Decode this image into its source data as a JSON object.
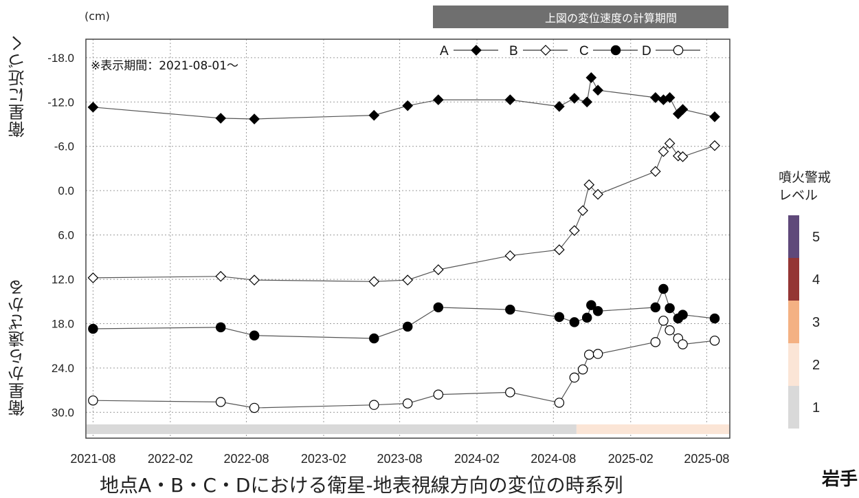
{
  "unit_label": "(cm)",
  "period_banner": "上図の変位速度の計算期間",
  "display_note": "※表示期間：2021-08-01～",
  "y_label_top": "衛星に近づく",
  "y_label_bottom": "衛星から遠ざかる",
  "x_title": "地点A・B・C・Dにおける衛星-地表視線方向の変位の時系列",
  "alert_title_line1": "噴火警戒",
  "alert_title_line2": "レベル",
  "corner_text": "岩手",
  "alert_levels": [
    {
      "level": "1",
      "color": "#d9d9d9"
    },
    {
      "level": "2",
      "color": "#fbe5d6"
    },
    {
      "level": "3",
      "color": "#f4b183"
    },
    {
      "level": "4",
      "color": "#943634"
    },
    {
      "level": "5",
      "color": "#5f497a"
    }
  ],
  "chart_data": {
    "type": "line",
    "x_type": "date",
    "xlim": [
      "2021-07-15",
      "2025-09-25"
    ],
    "x_ticks": [
      "2021-08",
      "2022-02",
      "2022-08",
      "2023-02",
      "2023-08",
      "2024-02",
      "2024-08",
      "2025-02",
      "2025-08"
    ],
    "ylim": [
      -20.5,
      33.5
    ],
    "y_inverted": true,
    "y_ticks": [
      "-18.0",
      "-12.0",
      "-6.0",
      "0.0",
      "6.0",
      "12.0",
      "18.0",
      "24.0",
      "30.0"
    ],
    "grid": true,
    "legend_position": "top-right",
    "series": [
      {
        "name": "A",
        "marker": "filled-diamond",
        "x": [
          "2021-08-01",
          "2022-06-01",
          "2022-08-20",
          "2023-06-01",
          "2023-08-20",
          "2023-11-01",
          "2024-04-20",
          "2024-08-15",
          "2024-09-20",
          "2024-10-20",
          "2024-10-30",
          "2024-11-15",
          "2025-04-01",
          "2025-04-20",
          "2025-05-05",
          "2025-05-25",
          "2025-06-05",
          "2025-08-20"
        ],
        "values": [
          -11.3,
          -9.8,
          -9.7,
          -10.2,
          -11.5,
          -12.3,
          -12.3,
          -11.4,
          -12.5,
          -12.0,
          -15.3,
          -13.6,
          -12.6,
          -12.3,
          -12.6,
          -10.4,
          -11.0,
          -10.0
        ]
      },
      {
        "name": "B",
        "marker": "open-diamond",
        "x": [
          "2021-08-01",
          "2022-06-01",
          "2022-08-20",
          "2023-06-01",
          "2023-08-20",
          "2023-11-01",
          "2024-04-20",
          "2024-08-15",
          "2024-09-20",
          "2024-10-10",
          "2024-10-25",
          "2024-11-15",
          "2025-04-01",
          "2025-04-20",
          "2025-05-05",
          "2025-05-25",
          "2025-06-05",
          "2025-08-20"
        ],
        "values": [
          11.8,
          11.6,
          12.1,
          12.3,
          12.1,
          10.7,
          8.8,
          8.0,
          5.4,
          2.7,
          -0.8,
          0.5,
          -2.6,
          -5.3,
          -6.4,
          -4.7,
          -4.6,
          -6.1
        ]
      },
      {
        "name": "C",
        "marker": "filled-circle",
        "x": [
          "2021-08-01",
          "2022-06-01",
          "2022-08-20",
          "2023-06-01",
          "2023-08-20",
          "2023-11-01",
          "2024-04-20",
          "2024-08-15",
          "2024-09-20",
          "2024-10-20",
          "2024-10-30",
          "2024-11-15",
          "2025-04-01",
          "2025-04-20",
          "2025-05-05",
          "2025-05-25",
          "2025-06-05",
          "2025-08-20"
        ],
        "values": [
          18.7,
          18.5,
          19.6,
          20.0,
          18.4,
          15.8,
          16.1,
          17.1,
          17.8,
          17.2,
          15.5,
          16.3,
          15.8,
          13.3,
          15.9,
          17.3,
          16.8,
          17.3
        ]
      },
      {
        "name": "D",
        "marker": "open-circle",
        "x": [
          "2021-08-01",
          "2022-06-01",
          "2022-08-20",
          "2023-06-01",
          "2023-08-20",
          "2023-11-01",
          "2024-04-20",
          "2024-08-15",
          "2024-09-20",
          "2024-10-10",
          "2024-10-25",
          "2024-11-15",
          "2025-04-01",
          "2025-04-20",
          "2025-05-05",
          "2025-05-25",
          "2025-06-05",
          "2025-08-20"
        ],
        "values": [
          28.4,
          28.6,
          29.4,
          29.0,
          28.8,
          27.6,
          27.3,
          28.7,
          25.3,
          24.2,
          22.2,
          22.1,
          20.5,
          17.6,
          18.9,
          20.0,
          20.8,
          20.3
        ]
      }
    ],
    "alert_bar": [
      {
        "from": "2021-07-15",
        "to": "2024-09-25",
        "level": "1"
      },
      {
        "from": "2024-09-25",
        "to": "2025-09-25",
        "level": "2"
      }
    ]
  }
}
